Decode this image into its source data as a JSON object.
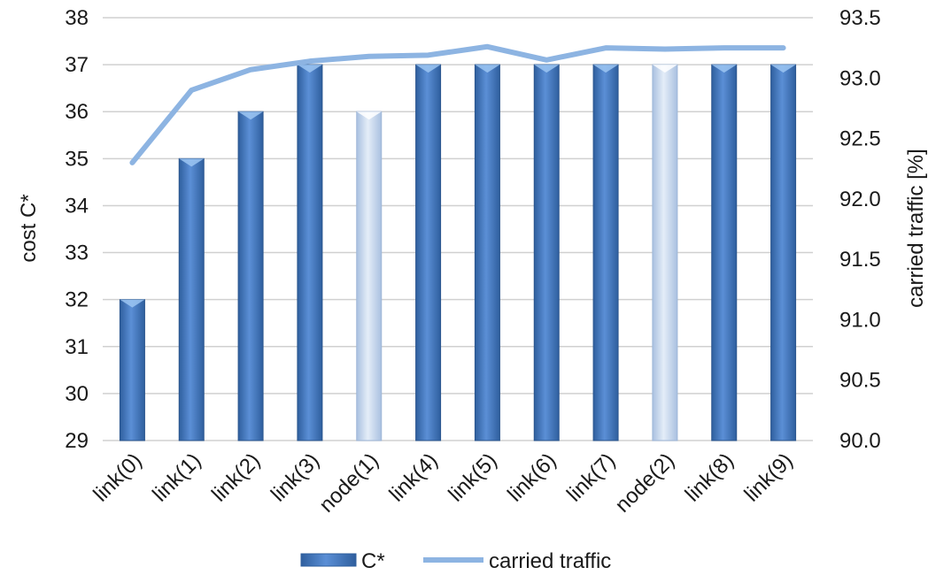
{
  "chart_data": {
    "type": "bar",
    "categories": [
      "link(0)",
      "link(1)",
      "link(2)",
      "link(3)",
      "node(1)",
      "link(4)",
      "link(5)",
      "link(6)",
      "link(7)",
      "node(2)",
      "link(8)",
      "link(9)"
    ],
    "series": [
      {
        "name": "C*",
        "type": "bar",
        "axis": "left",
        "values": [
          32,
          35,
          36,
          37,
          36,
          37,
          37,
          37,
          37,
          37,
          37,
          37
        ],
        "highlight": [
          false,
          false,
          false,
          false,
          true,
          false,
          false,
          false,
          false,
          true,
          false,
          false
        ]
      },
      {
        "name": "carried traffic",
        "type": "line",
        "axis": "right",
        "values": [
          92.3,
          92.9,
          93.07,
          93.14,
          93.18,
          93.19,
          93.26,
          93.15,
          93.25,
          93.24,
          93.25,
          93.25
        ]
      }
    ],
    "ylabel_left": "cost  C*",
    "ylabel_right": "carried traffic  [%]",
    "ylim_left": [
      29,
      38
    ],
    "yticks_left": [
      "29",
      "30",
      "31",
      "32",
      "33",
      "34",
      "35",
      "36",
      "37",
      "38"
    ],
    "ylim_right": [
      90.0,
      93.5
    ],
    "yticks_right": [
      "90.0",
      "90.5",
      "91.0",
      "91.5",
      "92.0",
      "92.5",
      "93.0",
      "93.5"
    ],
    "grid": true,
    "legend_position": "bottom",
    "colors": {
      "bar": "#4a7fcb",
      "bar_highlight": "#c9d9ef",
      "line": "#8db4e2",
      "grid": "#d0d0d0"
    }
  }
}
